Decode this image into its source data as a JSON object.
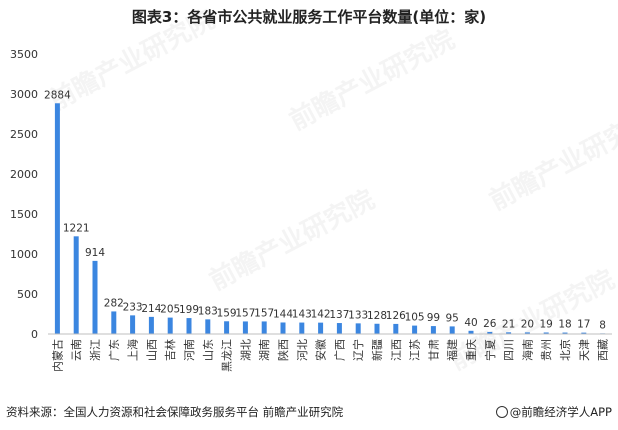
{
  "title": "图表3：各省市公共就业服务工作平台数量(单位：家)",
  "source": "资料来源：全国人力资源和社会保障政务服务平台 前瞻产业研究院",
  "brand": "@前瞻经济学人APP",
  "watermark": "前瞻产业研究院",
  "colors": {
    "bar": "#3b86e0",
    "axis": "#bfbfbf",
    "text": "#333333"
  },
  "chart_data": {
    "type": "bar",
    "title": "图表3：各省市公共就业服务工作平台数量(单位：家)",
    "xlabel": "",
    "ylabel": "",
    "ylim": [
      0,
      3500
    ],
    "yticks": [
      0,
      500,
      1000,
      1500,
      2000,
      2500,
      3000,
      3500
    ],
    "grid": false,
    "categories": [
      "内蒙古",
      "云南",
      "浙江",
      "广东",
      "上海",
      "山西",
      "吉林",
      "河南",
      "山东",
      "黑龙江",
      "湖北",
      "湖南",
      "陕西",
      "河北",
      "安徽",
      "广西",
      "辽宁",
      "新疆",
      "江西",
      "江苏",
      "甘肃",
      "福建",
      "重庆",
      "宁夏",
      "四川",
      "海南",
      "贵州",
      "北京",
      "天津",
      "西藏"
    ],
    "values": [
      2884,
      1221,
      914,
      282,
      233,
      214,
      205,
      199,
      183,
      159,
      157,
      157,
      144,
      143,
      142,
      137,
      133,
      128,
      126,
      105,
      99,
      95,
      40,
      26,
      21,
      20,
      19,
      18,
      17,
      8
    ]
  }
}
